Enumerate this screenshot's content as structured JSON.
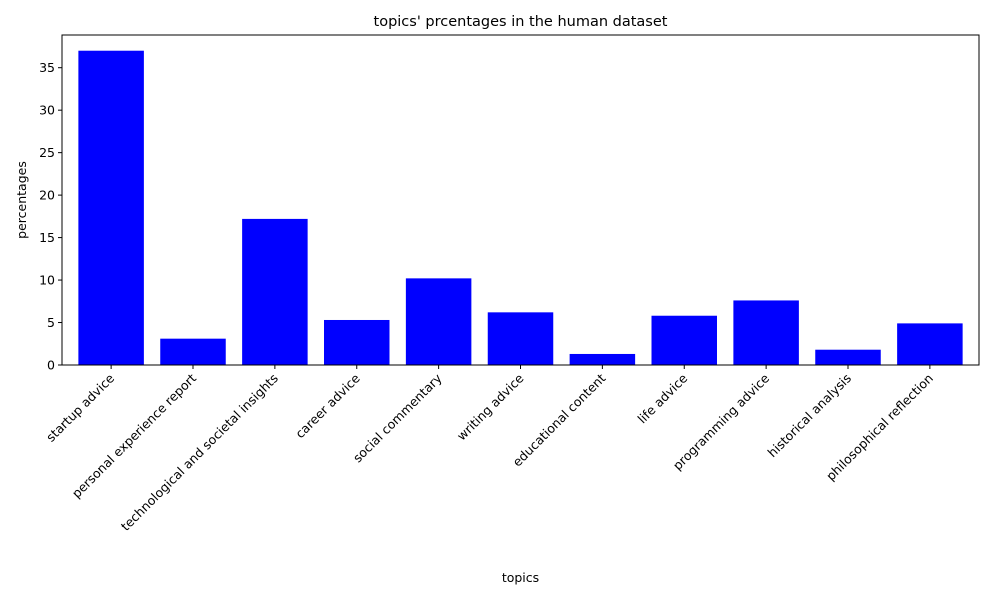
{
  "chart_data": {
    "type": "bar",
    "title": "topics' prcentages in the human dataset",
    "xlabel": "topics",
    "ylabel": "percentages",
    "categories": [
      "startup advice",
      "personal experience report",
      "technological and societal insights",
      "career advice",
      "social commentary",
      "writing advice",
      "educational content",
      "life advice",
      "programming advice",
      "historical analysis",
      "philosophical reflection"
    ],
    "values": [
      37.0,
      3.1,
      17.2,
      5.3,
      10.2,
      6.2,
      1.3,
      5.8,
      7.6,
      1.8,
      4.9
    ],
    "ylim": [
      0,
      38.85
    ],
    "yticks": [
      0,
      5,
      10,
      15,
      20,
      25,
      30,
      35
    ],
    "ytick_labels": [
      "0",
      "5",
      "10",
      "15",
      "20",
      "25",
      "30",
      "35"
    ],
    "bar_color": "#0000ff",
    "xtick_rotation": 45,
    "grid": false,
    "legend": "none"
  }
}
